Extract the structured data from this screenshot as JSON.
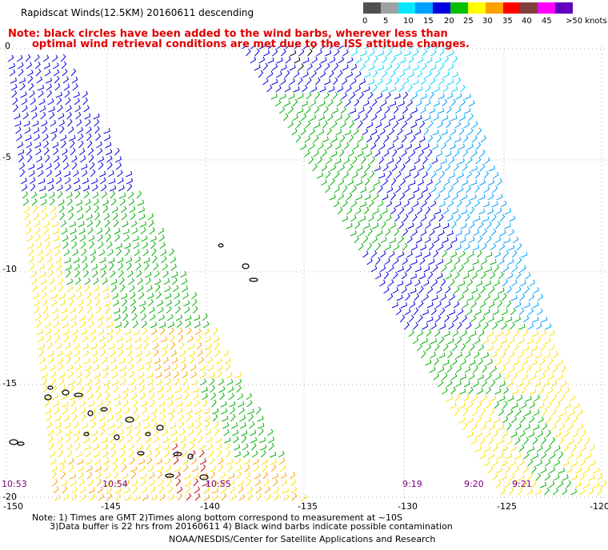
{
  "title": "Rapidscat Winds(12.5KM) 20160611 descending",
  "note_line1": "Note: black circles have been added to the wind barbs, wherever less than",
  "note_line2": "optimal wind retrieval conditions are met due to the ISS attitude changes.",
  "legend": {
    "labels": [
      "0",
      "5",
      "10",
      "15",
      "20",
      "25",
      "30",
      "35",
      "40",
      "45",
      ">50 knots"
    ],
    "colors": [
      "#505050",
      "#a0a0a0",
      "#00e8ff",
      "#00a0ff",
      "#0000e0",
      "#00c000",
      "#ffff00",
      "#ffa000",
      "#ff0000",
      "#804040",
      "#ff00ff",
      "#6000c0"
    ]
  },
  "latitude_labels": [
    "0",
    "-5",
    "-10",
    "-15",
    "-20"
  ],
  "longitude_labels": [
    "-150",
    "-145",
    "-140",
    "-135",
    "-130",
    "-125",
    "-120"
  ],
  "time_labels": [
    "10:53",
    "10:54",
    "10:55",
    "9:19",
    "9:20",
    "9:21"
  ],
  "footer": {
    "line1": "Note: 1) Times are GMT 2)Times along bottom correspond to measurement at ~10S",
    "line2": "3)Data buffer is 22 hrs from 20160611 4) Black wind barbs indicate possible contamination",
    "line3": "NOAA/NESDIS/Center for Satellite Applications and Research"
  }
}
